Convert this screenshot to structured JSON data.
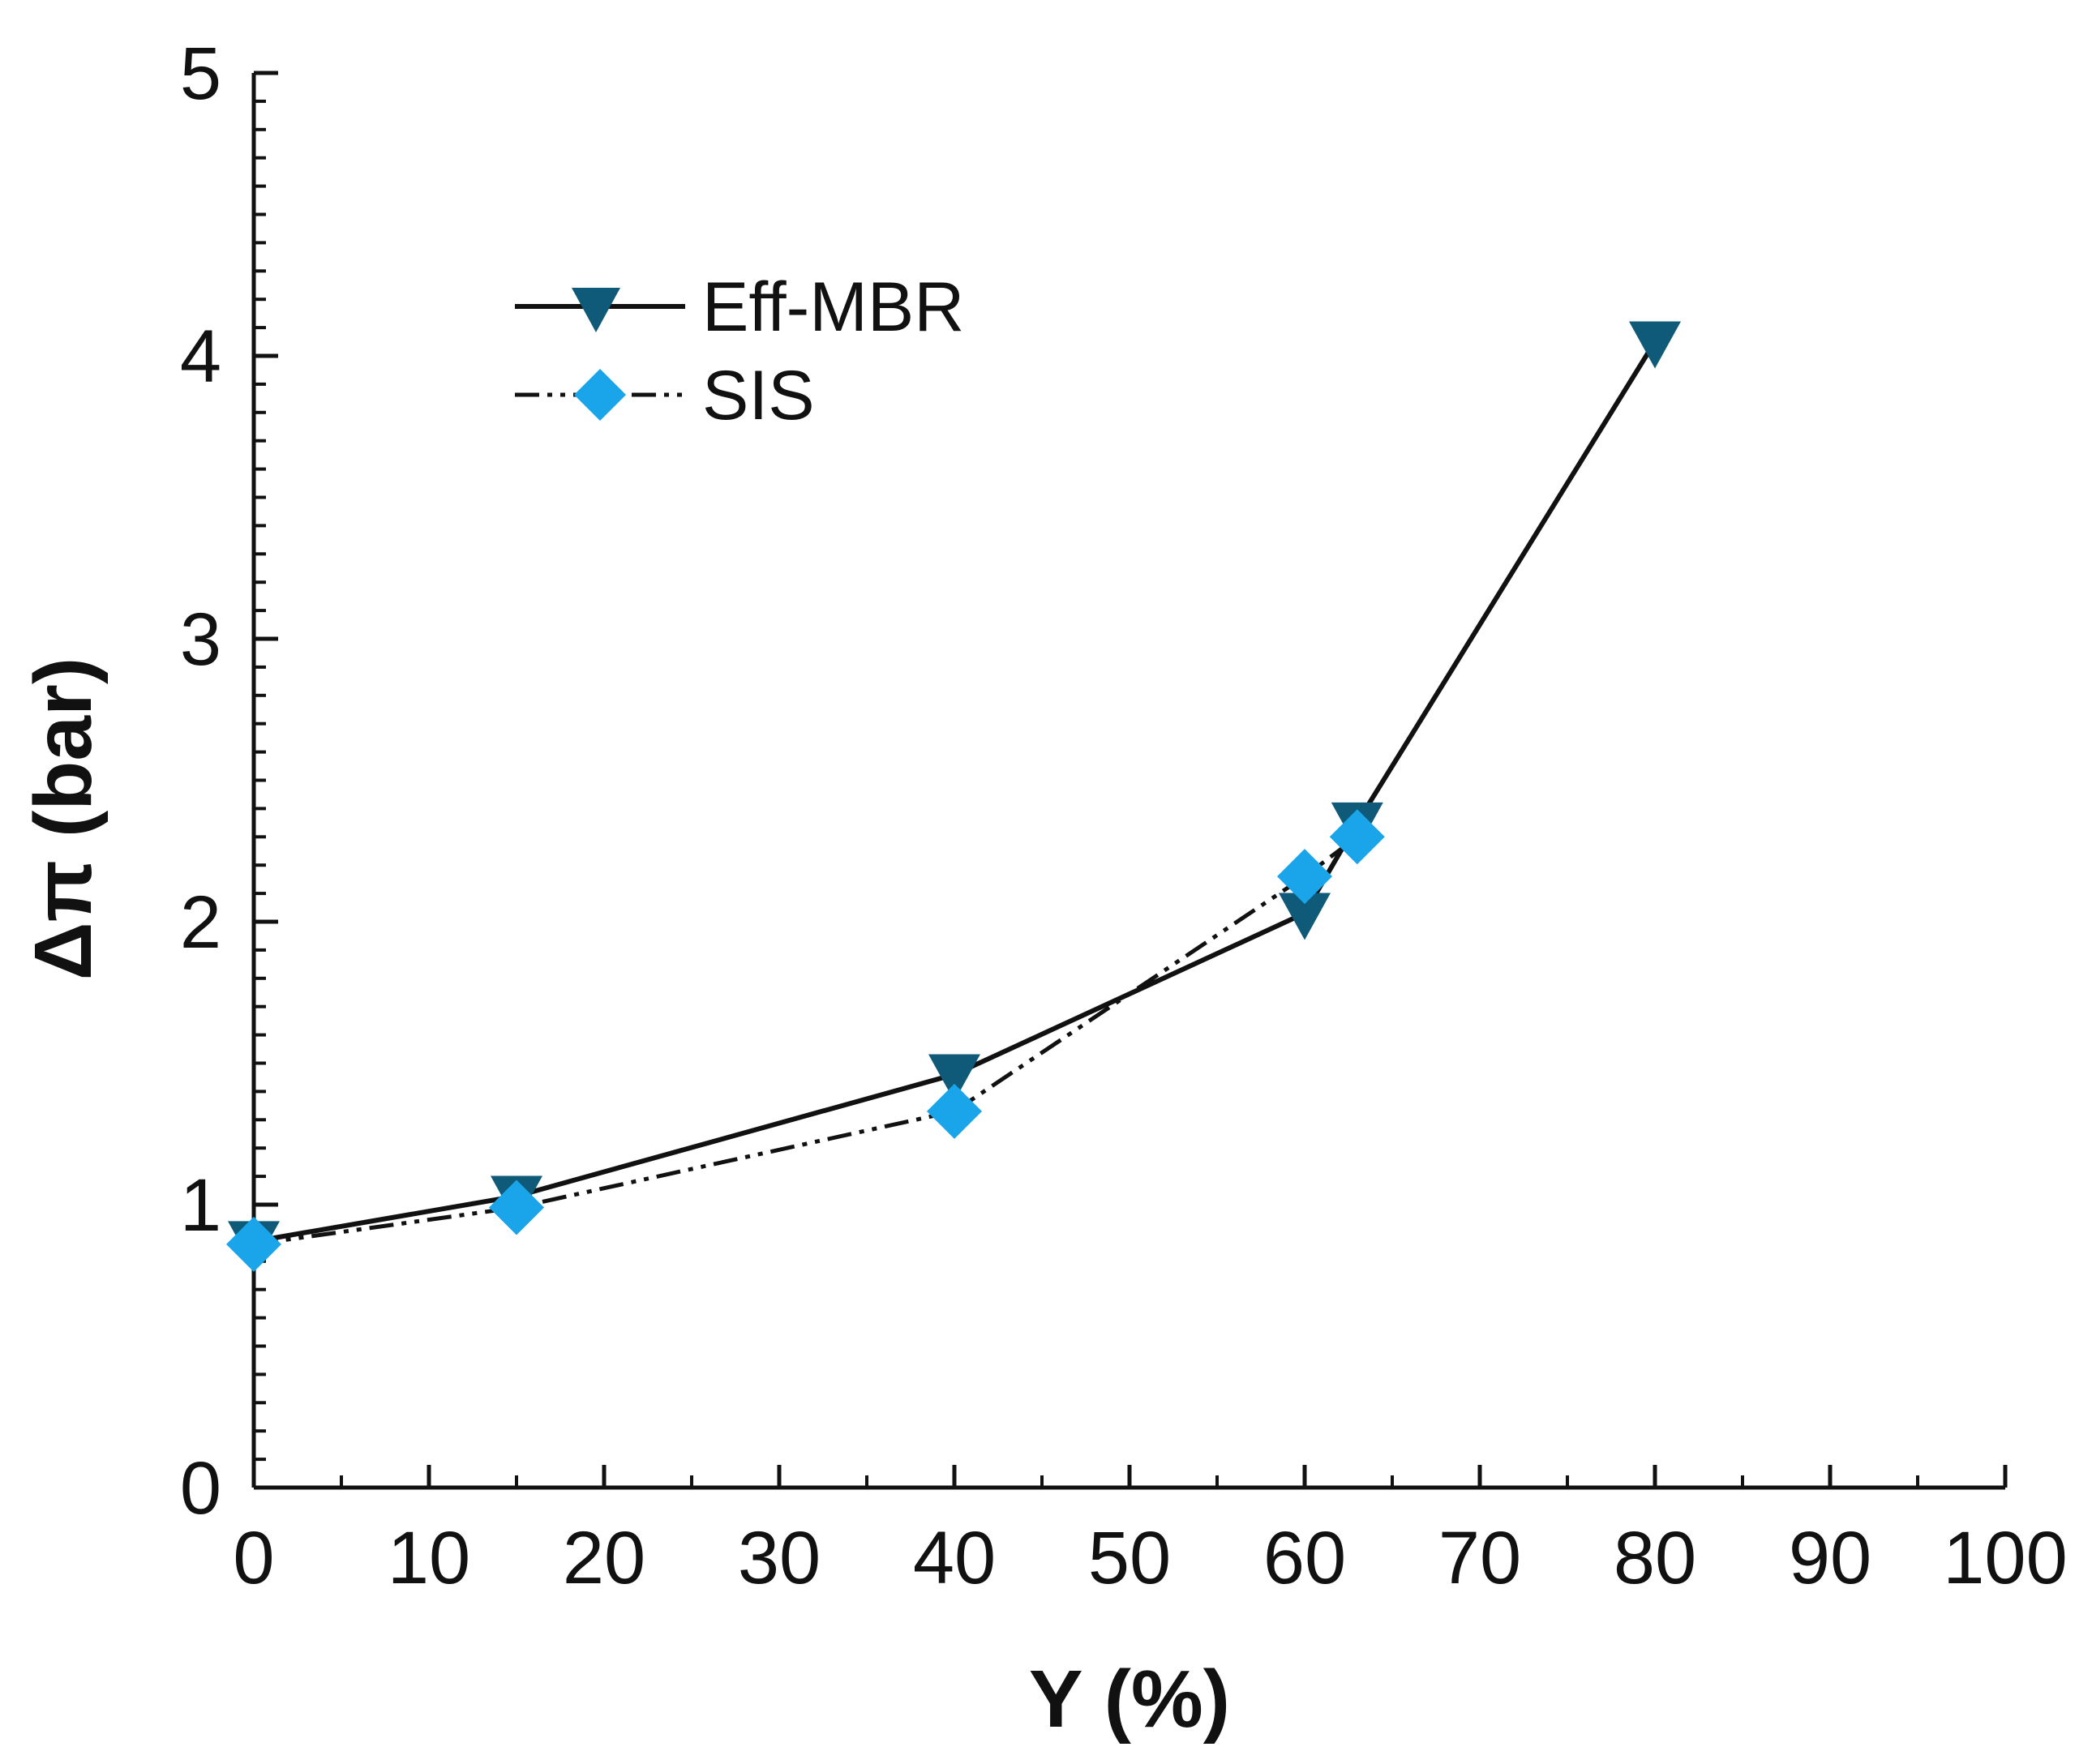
{
  "chart_data": {
    "type": "line",
    "xlabel": "Y (%)",
    "ylabel": "Δπ (bar)",
    "xlim": [
      0,
      100
    ],
    "ylim": [
      0,
      5
    ],
    "x_ticks": [
      0,
      10,
      20,
      30,
      40,
      50,
      60,
      70,
      80,
      90,
      100
    ],
    "y_ticks": [
      0,
      1,
      2,
      3,
      4,
      5
    ],
    "x_tick_labels": [
      "0",
      "10",
      "20",
      "30",
      "40",
      "50",
      "60",
      "70",
      "80",
      "90",
      "100"
    ],
    "y_tick_labels": [
      "0",
      "1",
      "2",
      "3",
      "4",
      "5"
    ],
    "legend_position": "upper-left",
    "series": [
      {
        "name": "Eff-MBR",
        "line_style": "solid",
        "marker": "triangle-down",
        "color": "#0e5a78",
        "x": [
          0,
          15,
          40,
          60,
          63,
          80
        ],
        "y": [
          0.87,
          1.03,
          1.46,
          2.03,
          2.35,
          4.05
        ]
      },
      {
        "name": "SIS",
        "line_style": "dash-dot-dot",
        "marker": "diamond",
        "color": "#1aa5ea",
        "x": [
          0,
          15,
          40,
          60,
          63
        ],
        "y": [
          0.86,
          0.99,
          1.33,
          2.16,
          2.3
        ]
      }
    ]
  }
}
